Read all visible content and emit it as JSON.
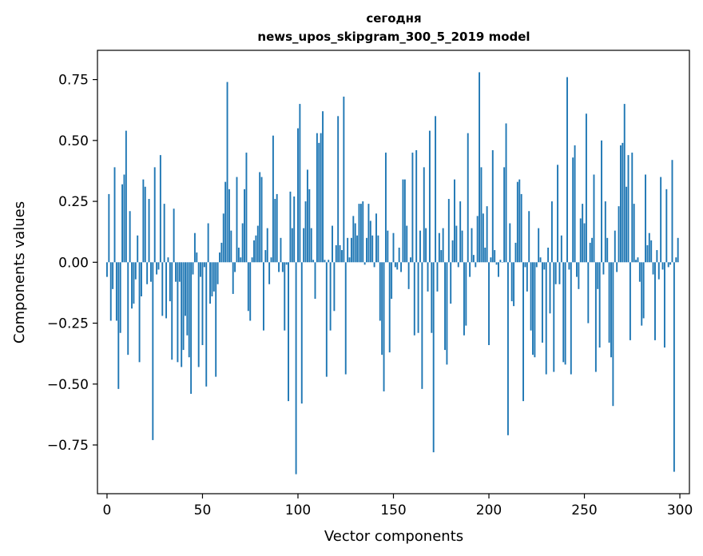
{
  "chart_data": {
    "type": "bar",
    "title_line1": "сегодня",
    "title_line2": "news_upos_skipgram_300_5_2019 model",
    "xlabel": "Vector components",
    "ylabel": "Components values",
    "xlim": [
      -5,
      305
    ],
    "ylim": [
      -0.95,
      0.87
    ],
    "xticks": [
      0,
      50,
      100,
      150,
      200,
      250,
      300
    ],
    "yticks": [
      -0.75,
      -0.5,
      -0.25,
      0.0,
      0.25,
      0.5,
      0.75
    ],
    "xtick_labels": [
      "0",
      "50",
      "100",
      "150",
      "200",
      "250",
      "300"
    ],
    "ytick_labels": [
      "−0.75",
      "−0.50",
      "−0.25",
      "0.00",
      "0.25",
      "0.50",
      "0.75"
    ],
    "bar_color": "#1f77b4",
    "values": [
      -0.06,
      0.28,
      -0.24,
      -0.11,
      0.39,
      -0.24,
      -0.52,
      -0.29,
      0.32,
      0.36,
      0.54,
      -0.38,
      0.21,
      -0.19,
      -0.17,
      -0.07,
      0.11,
      -0.41,
      -0.14,
      0.34,
      0.31,
      -0.09,
      0.26,
      -0.08,
      -0.73,
      0.39,
      -0.05,
      -0.03,
      0.44,
      -0.22,
      0.24,
      -0.23,
      0.02,
      -0.16,
      -0.4,
      0.22,
      -0.08,
      -0.41,
      -0.08,
      -0.43,
      -0.36,
      -0.22,
      -0.3,
      -0.39,
      -0.54,
      -0.05,
      0.12,
      0.04,
      -0.43,
      -0.06,
      -0.34,
      -0.02,
      -0.51,
      0.16,
      -0.17,
      -0.14,
      -0.12,
      -0.47,
      -0.09,
      0.04,
      0.08,
      0.2,
      0.33,
      0.74,
      0.3,
      0.13,
      -0.13,
      -0.04,
      0.35,
      0.06,
      0.02,
      0.16,
      0.3,
      0.45,
      -0.2,
      -0.24,
      0.02,
      0.09,
      0.11,
      0.15,
      0.37,
      0.35,
      -0.28,
      0.05,
      0.14,
      -0.09,
      0.02,
      0.52,
      0.26,
      0.28,
      -0.04,
      0.1,
      -0.04,
      -0.28,
      -0.01,
      -0.57,
      0.29,
      0.14,
      0.27,
      -0.87,
      0.55,
      0.65,
      -0.58,
      0.14,
      0.25,
      0.38,
      0.3,
      0.14,
      0.01,
      -0.15,
      0.53,
      0.49,
      0.53,
      0.62,
      0.01,
      -0.47,
      0.01,
      -0.28,
      0.15,
      -0.2,
      0.07,
      0.6,
      0.07,
      0.05,
      0.68,
      -0.46,
      0.1,
      0.02,
      0.1,
      0.19,
      0.16,
      0.11,
      0.24,
      0.24,
      0.25,
      -0.01,
      0.1,
      0.24,
      0.17,
      0.11,
      -0.02,
      0.2,
      0.11,
      -0.24,
      -0.38,
      -0.53,
      0.45,
      0.13,
      -0.37,
      -0.15,
      0.12,
      -0.02,
      -0.03,
      0.06,
      -0.04,
      0.34,
      0.34,
      0.15,
      -0.11,
      0.02,
      0.45,
      -0.3,
      0.46,
      -0.29,
      0.13,
      -0.52,
      0.39,
      0.14,
      -0.12,
      0.54,
      -0.29,
      -0.78,
      0.6,
      -0.12,
      0.12,
      0.05,
      0.14,
      -0.36,
      -0.42,
      0.26,
      -0.17,
      0.09,
      0.34,
      0.15,
      -0.02,
      0.25,
      0.13,
      -0.3,
      -0.26,
      0.53,
      -0.06,
      0.14,
      0.03,
      -0.02,
      0.19,
      0.78,
      0.39,
      0.2,
      0.06,
      0.23,
      -0.34,
      0.02,
      0.46,
      0.05,
      -0.01,
      -0.06,
      0.01,
      0.0,
      0.39,
      0.57,
      -0.71,
      0.16,
      -0.16,
      -0.18,
      0.08,
      0.33,
      0.34,
      0.28,
      -0.57,
      -0.02,
      -0.12,
      0.21,
      -0.28,
      -0.38,
      -0.39,
      -0.02,
      0.14,
      0.02,
      -0.33,
      -0.03,
      -0.46,
      0.06,
      -0.21,
      0.25,
      -0.45,
      -0.09,
      0.4,
      -0.09,
      0.11,
      -0.41,
      -0.42,
      0.76,
      -0.03,
      -0.46,
      0.43,
      0.48,
      -0.06,
      -0.11,
      0.18,
      0.24,
      0.16,
      0.61,
      -0.25,
      0.08,
      0.1,
      0.36,
      -0.45,
      -0.11,
      -0.35,
      0.5,
      -0.05,
      0.25,
      0.1,
      -0.33,
      -0.39,
      -0.59,
      0.13,
      -0.04,
      0.23,
      0.48,
      0.49,
      0.65,
      0.31,
      0.44,
      -0.32,
      0.45,
      0.24,
      0.01,
      0.02,
      -0.08,
      -0.26,
      -0.23,
      0.36,
      0.07,
      0.12,
      0.09,
      -0.05,
      -0.32,
      0.05,
      -0.07,
      0.35,
      -0.03,
      -0.35,
      0.3,
      -0.02,
      -0.01,
      0.42,
      -0.86,
      0.02,
      0.1
    ]
  }
}
